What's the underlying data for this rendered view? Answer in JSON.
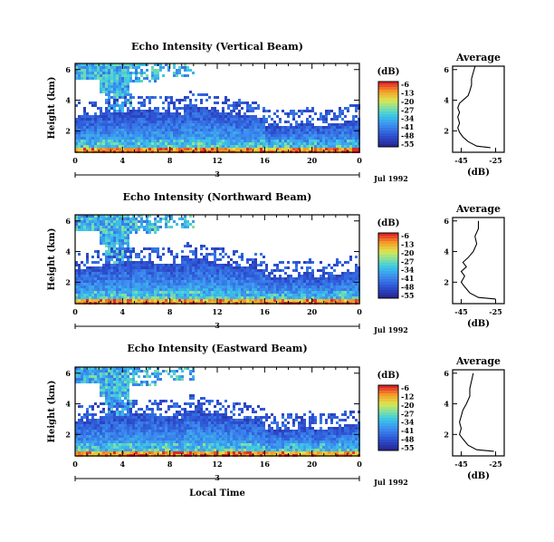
{
  "chart_data": [
    {
      "type": "heatmap",
      "title": "Echo Intensity (Vertical Beam)",
      "ylabel": "Height (km)",
      "xlabel": "",
      "x_ticks": [
        "0",
        "4",
        "8",
        "12",
        "16",
        "20",
        "0"
      ],
      "xlim": [
        0,
        24
      ],
      "y_ticks": [
        "2",
        "4",
        "6"
      ],
      "ylim": [
        0.6,
        6.4
      ],
      "date_tick": "3",
      "date_label": "Jul 1992",
      "colorbar": {
        "unit": "(dB)",
        "ticks": [
          "-6",
          "-13",
          "-20",
          "-27",
          "-34",
          "-41",
          "-48",
          "-55"
        ]
      },
      "average": {
        "title": "Average",
        "xlabel": "(dB)",
        "x_ticks": [
          "-45",
          "-25"
        ],
        "y_ticks": [
          "2",
          "4",
          "6"
        ],
        "profile": [
          [
            -28,
            0.9
          ],
          [
            -36,
            1.0
          ],
          [
            -41,
            1.3
          ],
          [
            -44,
            1.6
          ],
          [
            -46,
            1.9
          ],
          [
            -47,
            2.2
          ],
          [
            -46,
            2.5
          ],
          [
            -47,
            2.9
          ],
          [
            -46,
            3.2
          ],
          [
            -47,
            3.5
          ],
          [
            -46,
            3.8
          ],
          [
            -44,
            4.0
          ],
          [
            -41,
            4.3
          ],
          [
            -40,
            4.6
          ],
          [
            -39,
            5.0
          ],
          [
            -39,
            5.4
          ],
          [
            -38,
            5.8
          ],
          [
            -37,
            6.2
          ]
        ]
      },
      "accent_colors": {
        "low": "#2c3aa8",
        "mid": "#2fa8e8",
        "high": "#f0a020"
      }
    },
    {
      "type": "heatmap",
      "title": "Echo Intensity (Northward Beam)",
      "ylabel": "Height (km)",
      "xlabel": "",
      "x_ticks": [
        "0",
        "4",
        "8",
        "12",
        "16",
        "20",
        "0"
      ],
      "xlim": [
        0,
        24
      ],
      "y_ticks": [
        "2",
        "4",
        "6"
      ],
      "ylim": [
        0.6,
        6.4
      ],
      "date_tick": "3",
      "date_label": "Jul 1992",
      "colorbar": {
        "unit": "(dB)",
        "ticks": [
          "-6",
          "-13",
          "-20",
          "-27",
          "-34",
          "-41",
          "-48",
          "-55"
        ]
      },
      "average": {
        "title": "Average",
        "xlabel": "(dB)",
        "x_ticks": [
          "-45",
          "-25"
        ],
        "y_ticks": [
          "2",
          "4",
          "6"
        ],
        "profile": [
          [
            -25,
            0.9
          ],
          [
            -35,
            1.0
          ],
          [
            -40,
            1.3
          ],
          [
            -43,
            1.7
          ],
          [
            -45,
            2.0
          ],
          [
            -43,
            2.4
          ],
          [
            -45,
            2.7
          ],
          [
            -42,
            3.0
          ],
          [
            -44,
            3.3
          ],
          [
            -41,
            3.6
          ],
          [
            -38,
            4.0
          ],
          [
            -36,
            4.5
          ],
          [
            -37,
            5.0
          ],
          [
            -35,
            5.5
          ],
          [
            -35,
            6.0
          ]
        ]
      },
      "accent_colors": {
        "low": "#2c3aa8",
        "mid": "#2fa8e8",
        "high": "#f0a020"
      }
    },
    {
      "type": "heatmap",
      "title": "Echo Intensity (Eastward Beam)",
      "ylabel": "Height (km)",
      "xlabel": "Local Time",
      "x_ticks": [
        "0",
        "4",
        "8",
        "12",
        "16",
        "20",
        "0"
      ],
      "xlim": [
        0,
        24
      ],
      "y_ticks": [
        "2",
        "4",
        "6"
      ],
      "ylim": [
        0.6,
        6.4
      ],
      "date_tick": "3",
      "date_label": "Jul 1992",
      "colorbar": {
        "unit": "(dB)",
        "ticks": [
          "-6",
          "-12",
          "-20",
          "-27",
          "-34",
          "-41",
          "-48",
          "-55"
        ]
      },
      "average": {
        "title": "Average",
        "xlabel": "(dB)",
        "x_ticks": [
          "-45",
          "-25"
        ],
        "y_ticks": [
          "2",
          "4",
          "6"
        ],
        "profile": [
          [
            -26,
            0.9
          ],
          [
            -36,
            1.0
          ],
          [
            -41,
            1.3
          ],
          [
            -44,
            1.7
          ],
          [
            -46,
            2.0
          ],
          [
            -45,
            2.4
          ],
          [
            -46,
            2.8
          ],
          [
            -45,
            3.2
          ],
          [
            -44,
            3.6
          ],
          [
            -42,
            4.0
          ],
          [
            -40,
            4.5
          ],
          [
            -40,
            5.0
          ],
          [
            -39,
            5.5
          ],
          [
            -38,
            6.0
          ]
        ]
      },
      "accent_colors": {
        "low": "#2c3aa8",
        "mid": "#2fa8e8",
        "high": "#f0a020"
      }
    }
  ]
}
